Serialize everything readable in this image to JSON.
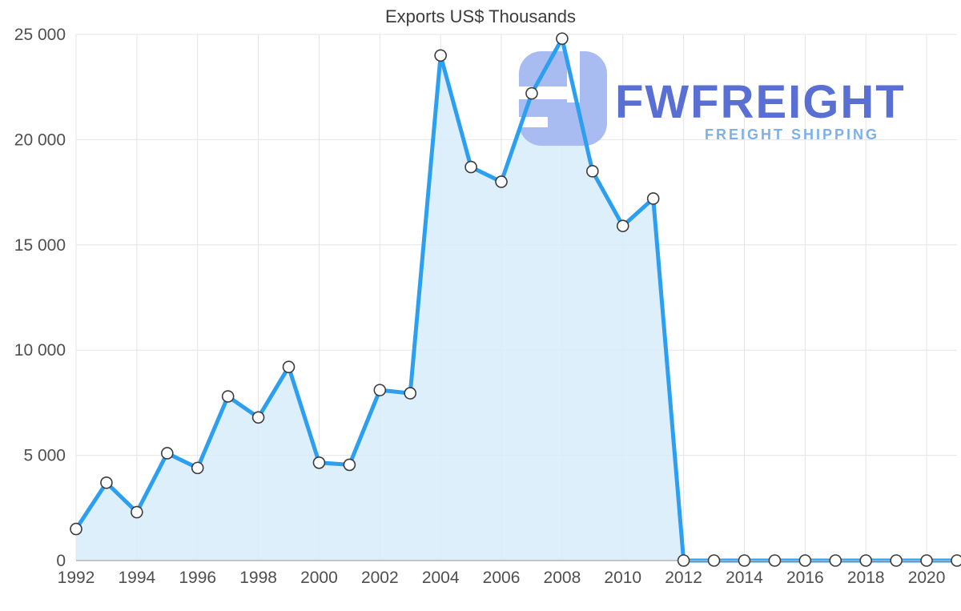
{
  "page": {
    "background": "#ffffff"
  },
  "chart_data": {
    "type": "line",
    "title": "Exports US$ Thousands",
    "xlabel": "",
    "ylabel": "",
    "x": [
      1992,
      1993,
      1994,
      1995,
      1996,
      1997,
      1998,
      1999,
      2000,
      2001,
      2002,
      2003,
      2004,
      2005,
      2006,
      2007,
      2008,
      2009,
      2010,
      2011,
      2012,
      2013,
      2014,
      2015,
      2016,
      2017,
      2018,
      2019,
      2020,
      2021
    ],
    "values": [
      1500,
      3700,
      2300,
      5100,
      4400,
      7800,
      6800,
      9200,
      4650,
      4550,
      8100,
      7950,
      24000,
      18700,
      18000,
      22200,
      24800,
      18500,
      15900,
      17200,
      0,
      0,
      0,
      0,
      0,
      0,
      0,
      0,
      0,
      0
    ],
    "xlim": [
      1992,
      2021
    ],
    "ylim": [
      0,
      25000
    ],
    "x_tick_values": [
      1992,
      1994,
      1996,
      1998,
      2000,
      2002,
      2004,
      2006,
      2008,
      2010,
      2012,
      2014,
      2016,
      2018,
      2020
    ],
    "x_tick_labels": [
      "1992",
      "1994",
      "1996",
      "1998",
      "2000",
      "2002",
      "2004",
      "2006",
      "2008",
      "2010",
      "2012",
      "2014",
      "2016",
      "2018",
      "2020"
    ],
    "y_tick_values": [
      0,
      5000,
      10000,
      15000,
      20000,
      25000
    ],
    "y_tick_labels": [
      "0",
      "5 000",
      "10 000",
      "15 000",
      "20 000",
      "25 000"
    ],
    "grid": "both",
    "legend": "none",
    "line_color": "#2d9ff0",
    "line_width": 5,
    "fill_color": "#d8ecfb",
    "fill_opacity": 0.85,
    "grid_color": "#e4e4e4",
    "axis_color": "#b3b3b3",
    "tick_color": "#4f4f4f",
    "marker": {
      "shape": "circle",
      "fill": "#ffffff",
      "stroke": "#3b3b3b",
      "radius": 7,
      "stroke_width": 1.6
    }
  },
  "watermark": {
    "name": "FWFREIGHT",
    "tagline": "FREIGHT SHIPPING",
    "text_color": "#5a6fd4",
    "tagline_color": "#7db0e8",
    "icon_color": "#a9bcf2"
  }
}
